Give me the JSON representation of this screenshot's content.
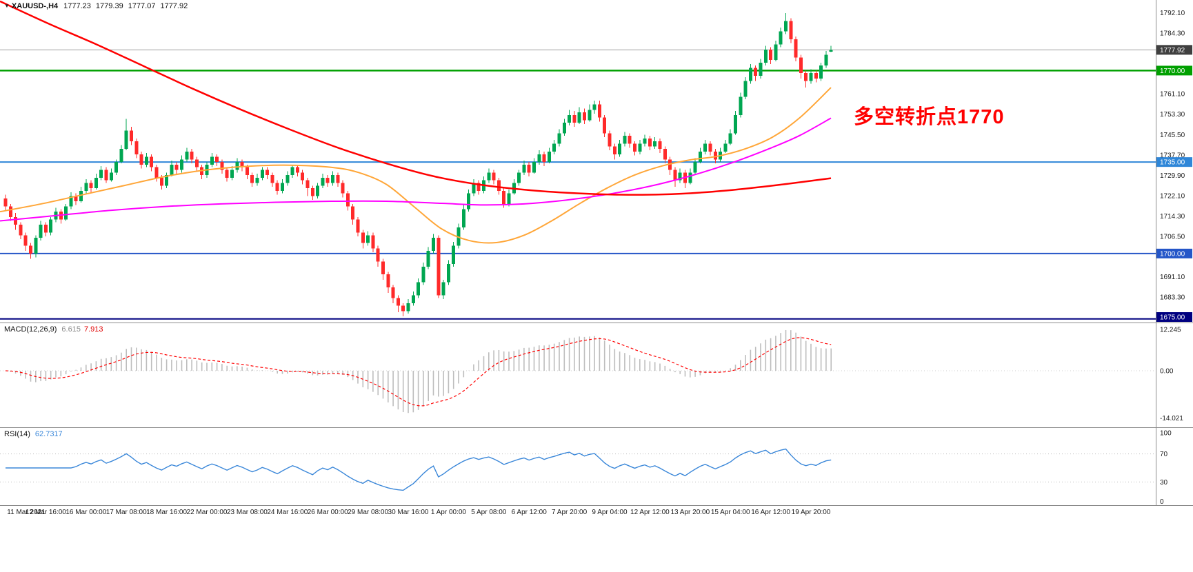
{
  "header": {
    "dropdown_icon": "▼",
    "symbol_period": "XAUUSD-,H4",
    "open": "1777.23",
    "high": "1779.39",
    "low": "1777.07",
    "close": "1777.92"
  },
  "annotation": {
    "text": "多空转折点1770",
    "color": "#ff0000"
  },
  "price_axis": {
    "tick_labels": [
      "1792.10",
      "1784.30",
      "1761.10",
      "1753.30",
      "1745.50",
      "1737.70",
      "1729.90",
      "1722.10",
      "1714.30",
      "1706.50",
      "1691.10",
      "1683.30"
    ],
    "tags": [
      {
        "text": "1777.92",
        "price": 1777.92,
        "bg": "#3f3f3f"
      },
      {
        "text": "1770.00",
        "price": 1770.0,
        "bg": "#00a000"
      },
      {
        "text": "1735.00",
        "price": 1735.0,
        "bg": "#2e86d8"
      },
      {
        "text": "1700.00",
        "price": 1700.0,
        "bg": "#2456c8"
      },
      {
        "text": "1675.00",
        "price": 1675.0,
        "bg": "#000080"
      }
    ]
  },
  "hlines": [
    {
      "price": 1777.92,
      "color": "#9b9b9b",
      "width": 1
    },
    {
      "price": 1770.0,
      "color": "#00a000",
      "width": 2.5
    },
    {
      "price": 1735.0,
      "color": "#2e86d8",
      "width": 2
    },
    {
      "price": 1700.0,
      "color": "#2456c8",
      "width": 2
    },
    {
      "price": 1675.0,
      "color": "#000080",
      "width": 2
    }
  ],
  "time_axis": {
    "labels": [
      "11 Mar 2021",
      "12 Mar 16:00",
      "16 Mar 00:00",
      "17 Mar 08:00",
      "18 Mar 16:00",
      "22 Mar 00:00",
      "23 Mar 08:00",
      "24 Mar 16:00",
      "26 Mar 00:00",
      "29 Mar 08:00",
      "30 Mar 16:00",
      "1 Apr 00:00",
      "5 Apr 08:00",
      "6 Apr 12:00",
      "7 Apr 20:00",
      "9 Apr 04:00",
      "12 Apr 12:00",
      "13 Apr 20:00",
      "15 Apr 04:00",
      "16 Apr 12:00",
      "19 Apr 20:00"
    ]
  },
  "macd": {
    "label": "MACD(12,26,9)",
    "main_value": "6.615",
    "signal_value": "7.913",
    "axis_labels": [
      "12.245",
      "0.00",
      "-14.021"
    ]
  },
  "rsi": {
    "label": "RSI(14)",
    "value": "62.7317",
    "axis_labels": [
      "100",
      "70",
      "30",
      "0"
    ],
    "levels": [
      70,
      30
    ]
  },
  "chart_data": {
    "type": "candlestick",
    "title": "XAUUSD H4",
    "ylim": [
      1673.6,
      1797.0
    ],
    "up_color": "#00a651",
    "down_color": "#ff2a2a",
    "candles": [
      [
        1721,
        1722.5,
        1716.5,
        1718
      ],
      [
        1718,
        1719,
        1712.5,
        1714
      ],
      [
        1714,
        1715.5,
        1709,
        1711
      ],
      [
        1711,
        1712,
        1705.5,
        1707
      ],
      [
        1707,
        1708,
        1701,
        1703
      ],
      [
        1703,
        1704,
        1698,
        1700
      ],
      [
        1700,
        1707,
        1698.5,
        1706
      ],
      [
        1706,
        1712.5,
        1705,
        1711
      ],
      [
        1711,
        1712,
        1706.5,
        1708
      ],
      [
        1708,
        1714,
        1707,
        1713
      ],
      [
        1713,
        1717.5,
        1712,
        1716
      ],
      [
        1716,
        1717,
        1711.5,
        1713
      ],
      [
        1713,
        1719,
        1712.5,
        1718
      ],
      [
        1718,
        1723.5,
        1717,
        1722
      ],
      [
        1722,
        1723,
        1718.5,
        1720
      ],
      [
        1720,
        1725.5,
        1719.5,
        1724
      ],
      [
        1724,
        1728.5,
        1723,
        1727
      ],
      [
        1727,
        1728,
        1723.5,
        1725
      ],
      [
        1725,
        1730.5,
        1724.5,
        1729
      ],
      [
        1729,
        1733.5,
        1728,
        1732
      ],
      [
        1732,
        1733,
        1727,
        1728
      ],
      [
        1728,
        1732.5,
        1727.5,
        1731
      ],
      [
        1731,
        1736,
        1730,
        1735
      ],
      [
        1735,
        1741.5,
        1734.5,
        1740
      ],
      [
        1740,
        1751.5,
        1739.5,
        1747
      ],
      [
        1747,
        1748.5,
        1741.5,
        1743
      ],
      [
        1743,
        1744,
        1736.5,
        1738
      ],
      [
        1738,
        1739,
        1732.5,
        1734
      ],
      [
        1734,
        1738.5,
        1733,
        1737
      ],
      [
        1737,
        1738,
        1731.5,
        1733
      ],
      [
        1733,
        1734,
        1727.5,
        1729
      ],
      [
        1729,
        1730,
        1724.5,
        1726
      ],
      [
        1726,
        1731,
        1725,
        1730
      ],
      [
        1730,
        1735.5,
        1729.5,
        1734
      ],
      [
        1734,
        1735,
        1730.5,
        1732
      ],
      [
        1732,
        1737.5,
        1731,
        1736
      ],
      [
        1736,
        1740.5,
        1735,
        1739
      ],
      [
        1739,
        1740,
        1734.5,
        1736
      ],
      [
        1736,
        1737,
        1731.5,
        1733
      ],
      [
        1733,
        1734,
        1728.5,
        1730
      ],
      [
        1730,
        1735,
        1729,
        1734
      ],
      [
        1734,
        1738.5,
        1733,
        1737
      ],
      [
        1737,
        1738,
        1733.5,
        1735
      ],
      [
        1735,
        1736,
        1730.5,
        1732
      ],
      [
        1732,
        1733,
        1727.5,
        1729
      ],
      [
        1729,
        1733.5,
        1728,
        1732
      ],
      [
        1732,
        1736.5,
        1731,
        1735
      ],
      [
        1735,
        1736,
        1731.5,
        1733
      ],
      [
        1733,
        1734,
        1728.5,
        1730
      ],
      [
        1730,
        1731,
        1725.5,
        1727
      ],
      [
        1727,
        1730.5,
        1726,
        1729
      ],
      [
        1729,
        1733,
        1728,
        1732
      ],
      [
        1732,
        1733,
        1728.5,
        1730
      ],
      [
        1730,
        1731,
        1725.5,
        1727
      ],
      [
        1727,
        1728,
        1722.5,
        1724
      ],
      [
        1724,
        1728.5,
        1723,
        1727
      ],
      [
        1727,
        1731.5,
        1726,
        1730
      ],
      [
        1730,
        1734,
        1729,
        1733
      ],
      [
        1733,
        1734,
        1729.5,
        1731
      ],
      [
        1731,
        1732,
        1726.5,
        1728
      ],
      [
        1728,
        1729,
        1722,
        1725
      ],
      [
        1725,
        1726,
        1720.5,
        1722
      ],
      [
        1722,
        1727,
        1721,
        1726
      ],
      [
        1726,
        1730.5,
        1725,
        1729
      ],
      [
        1729,
        1730,
        1725.5,
        1727
      ],
      [
        1727,
        1731.5,
        1726,
        1730
      ],
      [
        1730,
        1731,
        1725.5,
        1727
      ],
      [
        1727,
        1728,
        1721.5,
        1723
      ],
      [
        1723,
        1724,
        1716.5,
        1718
      ],
      [
        1718,
        1719,
        1711,
        1713
      ],
      [
        1713,
        1714,
        1706.5,
        1708
      ],
      [
        1708,
        1709,
        1702,
        1704
      ],
      [
        1704,
        1708.5,
        1703,
        1707
      ],
      [
        1707,
        1708,
        1700.5,
        1702
      ],
      [
        1702,
        1703,
        1695,
        1697
      ],
      [
        1697,
        1698,
        1690,
        1692
      ],
      [
        1692,
        1693,
        1685,
        1687
      ],
      [
        1687,
        1688,
        1681,
        1683
      ],
      [
        1683,
        1684,
        1677.5,
        1680
      ],
      [
        1680,
        1681,
        1676,
        1678
      ],
      [
        1678,
        1682.5,
        1677,
        1681
      ],
      [
        1681,
        1685.5,
        1680,
        1684
      ],
      [
        1684,
        1690.5,
        1683,
        1689
      ],
      [
        1689,
        1696.5,
        1688,
        1695
      ],
      [
        1695,
        1702.5,
        1694,
        1701
      ],
      [
        1701,
        1707.5,
        1700,
        1706
      ],
      [
        1706,
        1707,
        1683,
        1684
      ],
      [
        1684,
        1690,
        1682.5,
        1689
      ],
      [
        1689,
        1697.5,
        1688,
        1696
      ],
      [
        1696,
        1704.5,
        1695,
        1703
      ],
      [
        1703,
        1711.5,
        1702,
        1710
      ],
      [
        1710,
        1718.5,
        1709,
        1717
      ],
      [
        1717,
        1724.5,
        1716,
        1723
      ],
      [
        1723,
        1728.5,
        1722,
        1727
      ],
      [
        1727,
        1728,
        1722.5,
        1724
      ],
      [
        1724,
        1729.5,
        1723,
        1728
      ],
      [
        1728,
        1732.5,
        1727,
        1731
      ],
      [
        1731,
        1732,
        1726.5,
        1728
      ],
      [
        1728,
        1729,
        1722.5,
        1724
      ],
      [
        1724,
        1725,
        1717.5,
        1719
      ],
      [
        1719,
        1724.5,
        1718,
        1723
      ],
      [
        1723,
        1728.5,
        1722.5,
        1727
      ],
      [
        1727,
        1732,
        1726,
        1731
      ],
      [
        1731,
        1735.5,
        1730,
        1734
      ],
      [
        1734,
        1735,
        1729.5,
        1731
      ],
      [
        1731,
        1736.5,
        1730.5,
        1735
      ],
      [
        1735,
        1739.5,
        1734,
        1738
      ],
      [
        1738,
        1739,
        1733.5,
        1735
      ],
      [
        1735,
        1740.5,
        1734.5,
        1739
      ],
      [
        1739,
        1743.5,
        1738,
        1742
      ],
      [
        1742,
        1747.5,
        1741,
        1746
      ],
      [
        1746,
        1751.5,
        1745,
        1750
      ],
      [
        1750,
        1755,
        1749,
        1753
      ],
      [
        1753,
        1754.5,
        1748.5,
        1750
      ],
      [
        1750,
        1756,
        1749.5,
        1754
      ],
      [
        1754,
        1755.5,
        1749.5,
        1751
      ],
      [
        1751,
        1757,
        1750.5,
        1755
      ],
      [
        1755,
        1758.5,
        1753.5,
        1757
      ],
      [
        1757,
        1758.5,
        1750.5,
        1752
      ],
      [
        1752,
        1753,
        1744.5,
        1746
      ],
      [
        1746,
        1747,
        1739.5,
        1741
      ],
      [
        1741,
        1742,
        1736,
        1738
      ],
      [
        1738,
        1743.5,
        1737,
        1742
      ],
      [
        1742,
        1746.5,
        1741,
        1745
      ],
      [
        1745,
        1746,
        1740.5,
        1742
      ],
      [
        1742,
        1743,
        1737.5,
        1739
      ],
      [
        1739,
        1743.5,
        1738,
        1742
      ],
      [
        1742,
        1745.5,
        1741,
        1744
      ],
      [
        1744,
        1745,
        1739.5,
        1741
      ],
      [
        1741,
        1744.5,
        1740,
        1743
      ],
      [
        1743,
        1744,
        1738.5,
        1740
      ],
      [
        1740,
        1741,
        1734.5,
        1736
      ],
      [
        1736,
        1737,
        1730,
        1732
      ],
      [
        1732,
        1733,
        1725.5,
        1728
      ],
      [
        1728,
        1732.5,
        1727,
        1731
      ],
      [
        1731,
        1732,
        1725,
        1727
      ],
      [
        1727,
        1732.5,
        1726.5,
        1731
      ],
      [
        1731,
        1736.5,
        1730,
        1735
      ],
      [
        1735,
        1740.5,
        1734.5,
        1739
      ],
      [
        1739,
        1743.5,
        1738,
        1742
      ],
      [
        1742,
        1743,
        1737.5,
        1739
      ],
      [
        1739,
        1740,
        1734.5,
        1736
      ],
      [
        1736,
        1740.5,
        1735,
        1739
      ],
      [
        1739,
        1743.5,
        1738.5,
        1742
      ],
      [
        1742,
        1747.5,
        1741.5,
        1746
      ],
      [
        1746,
        1754.5,
        1745.5,
        1753
      ],
      [
        1753,
        1761.5,
        1752,
        1760
      ],
      [
        1760,
        1767.5,
        1759,
        1766
      ],
      [
        1766,
        1772.5,
        1765,
        1771
      ],
      [
        1771,
        1772,
        1766,
        1768
      ],
      [
        1768,
        1774.5,
        1767,
        1773
      ],
      [
        1773,
        1779.5,
        1772,
        1778
      ],
      [
        1778,
        1779,
        1772.5,
        1774
      ],
      [
        1774,
        1781.5,
        1773.5,
        1780
      ],
      [
        1780,
        1786.5,
        1779,
        1785
      ],
      [
        1785,
        1792,
        1784,
        1789
      ],
      [
        1789,
        1790,
        1780.5,
        1782
      ],
      [
        1782,
        1783,
        1773.5,
        1775
      ],
      [
        1775,
        1776,
        1767,
        1769
      ],
      [
        1769,
        1770,
        1763.5,
        1766
      ],
      [
        1766,
        1770.5,
        1765,
        1769
      ],
      [
        1769,
        1770,
        1765.5,
        1767
      ],
      [
        1767,
        1773,
        1766,
        1772
      ],
      [
        1772,
        1777.5,
        1771,
        1776
      ],
      [
        1777.2,
        1779.4,
        1777.1,
        1777.9
      ]
    ],
    "ma_lines": [
      {
        "name": "ma-fast-orange",
        "color": "#ffa638",
        "width": 2,
        "points": [
          [
            0,
            1716
          ],
          [
            60,
            1719
          ],
          [
            120,
            1722.5
          ],
          [
            180,
            1726
          ],
          [
            240,
            1729.5
          ],
          [
            300,
            1732
          ],
          [
            360,
            1733.4
          ],
          [
            420,
            1733.8
          ],
          [
            480,
            1733
          ],
          [
            520,
            1731
          ],
          [
            560,
            1726.5
          ],
          [
            600,
            1718
          ],
          [
            640,
            1709.5
          ],
          [
            680,
            1705
          ],
          [
            720,
            1704.2
          ],
          [
            760,
            1707
          ],
          [
            800,
            1712.5
          ],
          [
            840,
            1719
          ],
          [
            880,
            1725
          ],
          [
            920,
            1730
          ],
          [
            960,
            1733.5
          ],
          [
            1000,
            1735.8
          ],
          [
            1040,
            1737.2
          ],
          [
            1080,
            1740
          ],
          [
            1120,
            1744.5
          ],
          [
            1160,
            1752
          ],
          [
            1205,
            1763.5
          ]
        ]
      },
      {
        "name": "ma-mid-magenta",
        "color": "#ff00ff",
        "width": 2,
        "points": [
          [
            0,
            1712.5
          ],
          [
            80,
            1714.5
          ],
          [
            160,
            1716.5
          ],
          [
            240,
            1718
          ],
          [
            320,
            1719
          ],
          [
            400,
            1719.6
          ],
          [
            480,
            1720
          ],
          [
            560,
            1720
          ],
          [
            640,
            1719.2
          ],
          [
            700,
            1718.6
          ],
          [
            760,
            1719
          ],
          [
            820,
            1720.4
          ],
          [
            880,
            1722.6
          ],
          [
            940,
            1725.6
          ],
          [
            1000,
            1729.6
          ],
          [
            1060,
            1734.6
          ],
          [
            1120,
            1740.6
          ],
          [
            1160,
            1745.2
          ],
          [
            1205,
            1751.8
          ]
        ]
      },
      {
        "name": "ma-slow-red",
        "color": "#ff0000",
        "width": 2.5,
        "points": [
          [
            0,
            1796.5
          ],
          [
            70,
            1788
          ],
          [
            140,
            1780
          ],
          [
            210,
            1771.5
          ],
          [
            280,
            1763
          ],
          [
            350,
            1755
          ],
          [
            420,
            1747.5
          ],
          [
            490,
            1740.5
          ],
          [
            560,
            1734.5
          ],
          [
            630,
            1729.5
          ],
          [
            700,
            1726.2
          ],
          [
            770,
            1724.2
          ],
          [
            840,
            1723
          ],
          [
            900,
            1722.5
          ],
          [
            960,
            1722.6
          ],
          [
            1020,
            1723.4
          ],
          [
            1080,
            1724.8
          ],
          [
            1140,
            1726.6
          ],
          [
            1205,
            1728.8
          ]
        ]
      }
    ],
    "indicators": {
      "macd": {
        "fast": 12,
        "slow": 26,
        "signal": 9,
        "histogram_color": "#bdbdbd",
        "signal_color": "#ff0000"
      },
      "rsi": {
        "period": 14,
        "color": "#3a87d9"
      }
    }
  }
}
